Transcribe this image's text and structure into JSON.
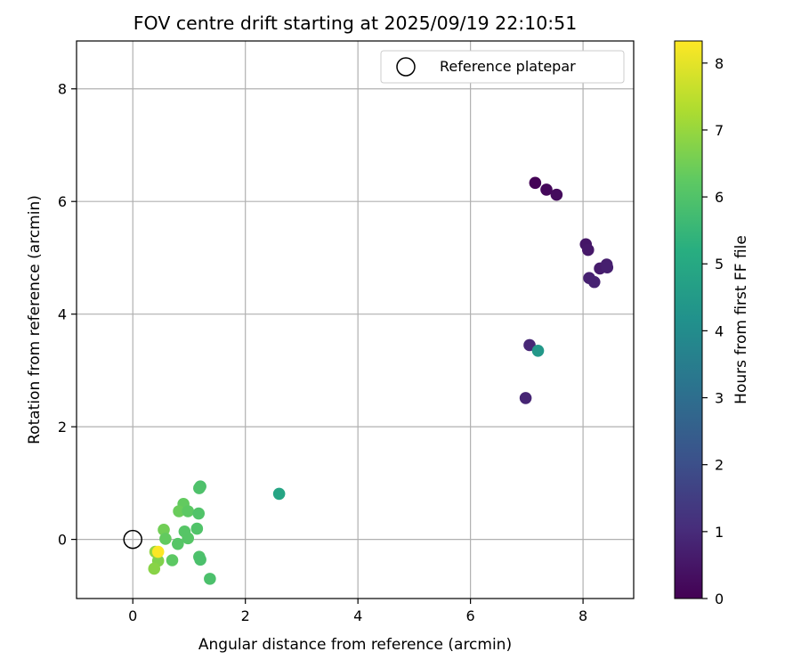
{
  "chart_data": {
    "type": "scatter",
    "title": "FOV centre drift starting at 2025/09/19 22:10:51",
    "xlabel": "Angular distance from reference (arcmin)",
    "ylabel": "Rotation from reference (arcmin)",
    "xlim": [
      -1.0,
      8.9
    ],
    "ylim": [
      -1.05,
      8.85
    ],
    "xticks": [
      0,
      2,
      4,
      6,
      8
    ],
    "yticks": [
      0,
      2,
      4,
      6,
      8
    ],
    "grid": true,
    "legend": {
      "position": "top-right",
      "entries": [
        {
          "label": "Reference platepar",
          "marker": "open-circle"
        }
      ]
    },
    "reference_point": {
      "x": 0,
      "y": 0
    },
    "colorbar": {
      "label": "Hours from first FF file",
      "colormap": "viridis",
      "min": 0,
      "max": 8.33,
      "ticks": [
        0,
        1,
        2,
        3,
        4,
        5,
        6,
        7,
        8
      ]
    },
    "series": [
      {
        "name": "FOV centre drift",
        "points": [
          {
            "x": 7.15,
            "y": 6.33,
            "hours": 0.05
          },
          {
            "x": 7.35,
            "y": 6.21,
            "hours": 0.15
          },
          {
            "x": 7.53,
            "y": 6.12,
            "hours": 0.25
          },
          {
            "x": 8.05,
            "y": 5.24,
            "hours": 0.5
          },
          {
            "x": 8.09,
            "y": 5.14,
            "hours": 0.55
          },
          {
            "x": 8.3,
            "y": 4.81,
            "hours": 0.65
          },
          {
            "x": 8.42,
            "y": 4.88,
            "hours": 0.7
          },
          {
            "x": 8.43,
            "y": 4.83,
            "hours": 0.72
          },
          {
            "x": 8.11,
            "y": 4.64,
            "hours": 0.75
          },
          {
            "x": 8.2,
            "y": 4.57,
            "hours": 0.78
          },
          {
            "x": 7.05,
            "y": 3.45,
            "hours": 0.9
          },
          {
            "x": 6.98,
            "y": 2.51,
            "hours": 0.85
          },
          {
            "x": 7.2,
            "y": 3.35,
            "hours": 4.4
          },
          {
            "x": 2.6,
            "y": 0.81,
            "hours": 4.9
          },
          {
            "x": 1.2,
            "y": 0.94,
            "hours": 5.9
          },
          {
            "x": 1.18,
            "y": 0.91,
            "hours": 5.95
          },
          {
            "x": 0.9,
            "y": 0.63,
            "hours": 6.3
          },
          {
            "x": 0.82,
            "y": 0.5,
            "hours": 6.4
          },
          {
            "x": 0.98,
            "y": 0.5,
            "hours": 6.2
          },
          {
            "x": 1.17,
            "y": 0.46,
            "hours": 6.0
          },
          {
            "x": 1.14,
            "y": 0.19,
            "hours": 6.0
          },
          {
            "x": 0.92,
            "y": 0.14,
            "hours": 6.1
          },
          {
            "x": 0.55,
            "y": 0.17,
            "hours": 6.5
          },
          {
            "x": 0.58,
            "y": 0.01,
            "hours": 6.3
          },
          {
            "x": 0.98,
            "y": 0.02,
            "hours": 6.1
          },
          {
            "x": 0.8,
            "y": -0.08,
            "hours": 6.1
          },
          {
            "x": 1.18,
            "y": -0.31,
            "hours": 5.95
          },
          {
            "x": 1.2,
            "y": -0.36,
            "hours": 5.9
          },
          {
            "x": 0.7,
            "y": -0.37,
            "hours": 6.2
          },
          {
            "x": 1.37,
            "y": -0.7,
            "hours": 5.9
          },
          {
            "x": 0.45,
            "y": -0.38,
            "hours": 6.7
          },
          {
            "x": 0.38,
            "y": -0.52,
            "hours": 6.8
          },
          {
            "x": 0.4,
            "y": -0.22,
            "hours": 6.9
          },
          {
            "x": 0.45,
            "y": -0.22,
            "hours": 8.3
          }
        ]
      }
    ]
  }
}
